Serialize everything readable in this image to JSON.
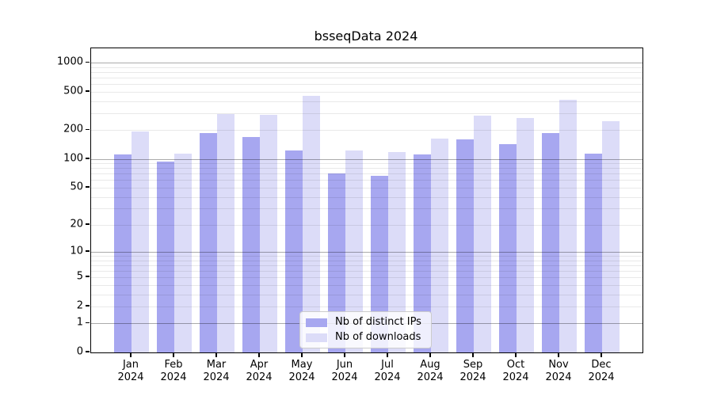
{
  "title": "bsseqData 2024",
  "chart_data": {
    "type": "bar",
    "title": "bsseqData 2024",
    "categories": [
      "Jan",
      "Feb",
      "Mar",
      "Apr",
      "May",
      "Jun",
      "Jul",
      "Aug",
      "Sep",
      "Oct",
      "Nov",
      "Dec"
    ],
    "year": "2024",
    "series": [
      {
        "name": "Nb of distinct IPs",
        "color": "#a7a7f0",
        "values": [
          112,
          94,
          188,
          169,
          123,
          70,
          67,
          112,
          160,
          142,
          188,
          113
        ]
      },
      {
        "name": "Nb of downloads",
        "color": "#dcdcf8",
        "values": [
          195,
          113,
          292,
          287,
          455,
          122,
          118,
          164,
          284,
          267,
          417,
          250
        ]
      }
    ],
    "y_ticks": [
      0,
      1,
      2,
      5,
      10,
      20,
      50,
      100,
      200,
      500,
      1000
    ],
    "y_major_gridlines": [
      1,
      10,
      100,
      1000
    ],
    "y_scale": "log1p",
    "ylim": [
      0,
      1415
    ],
    "xlabel": "",
    "ylabel": "",
    "grid": true,
    "legend_position": "bottom-center-inside",
    "axis_color": "#000000",
    "background_color": "#ffffff"
  }
}
